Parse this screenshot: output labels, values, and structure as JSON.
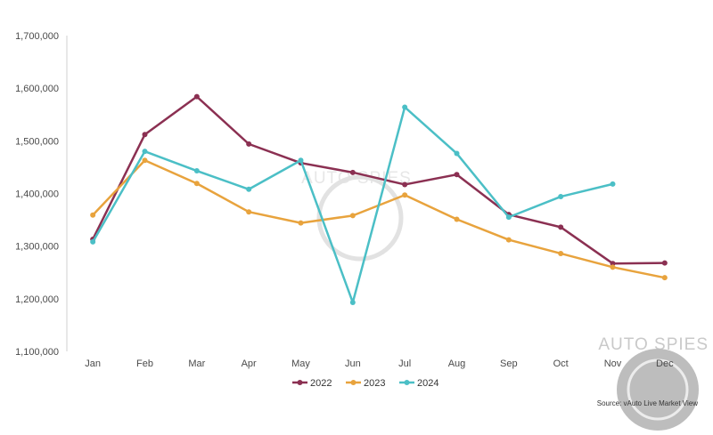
{
  "chart_data": {
    "type": "line",
    "categories": [
      "Jan",
      "Feb",
      "Mar",
      "Apr",
      "May",
      "Jun",
      "Jul",
      "Aug",
      "Sep",
      "Oct",
      "Nov",
      "Dec"
    ],
    "ylim": [
      1100000,
      1700000
    ],
    "yticks": [
      1100000,
      1200000,
      1300000,
      1400000,
      1500000,
      1600000,
      1700000
    ],
    "ytick_labels": [
      "1,100,000",
      "1,200,000",
      "1,300,000",
      "1,400,000",
      "1,500,000",
      "1,600,000",
      "1,700,000"
    ],
    "grid": false,
    "legend_position": "bottom",
    "series": [
      {
        "name": "2022",
        "color": "#8b3052",
        "values": [
          1313000,
          1512000,
          1584000,
          1494000,
          1458000,
          1440000,
          1417000,
          1436000,
          1360000,
          1336000,
          1267000,
          1268000
        ]
      },
      {
        "name": "2023",
        "color": "#e8a33d",
        "values": [
          1359000,
          1463000,
          1419000,
          1365000,
          1344000,
          1358000,
          1397000,
          1351000,
          1312000,
          1286000,
          1260000,
          1240000
        ]
      },
      {
        "name": "2024",
        "color": "#4bbfc6",
        "values": [
          1308000,
          1480000,
          1443000,
          1408000,
          1463000,
          1193000,
          1564000,
          1476000,
          1355000,
          1394000,
          1418000,
          null
        ]
      }
    ],
    "source": "Source: vAuto Live Market View"
  },
  "watermark": {
    "text": "AUTO SPIES"
  }
}
